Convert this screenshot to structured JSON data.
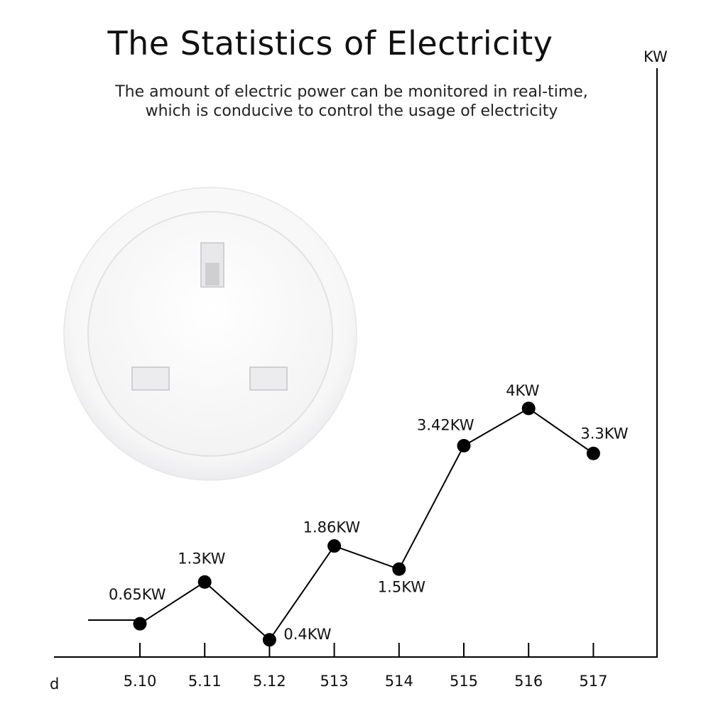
{
  "header": {
    "title": "The Statistics of Electricity",
    "subtitle_line1": "The amount of electric power can be monitored in real-time,",
    "subtitle_line2": "which is conducive to control the usage of electricity"
  },
  "product": {
    "icon": "uk-socket-icon"
  },
  "chart_data": {
    "type": "line",
    "title": "The Statistics of Electricity",
    "xlabel": "d",
    "ylabel": "KW",
    "categories": [
      "5.10",
      "5.11",
      "5.12",
      "513",
      "514",
      "515",
      "516",
      "517"
    ],
    "values": [
      0.65,
      1.3,
      0.4,
      1.86,
      1.5,
      3.42,
      4,
      3.3
    ],
    "point_labels": [
      "0.65KW",
      "1.3KW",
      "0.4KW",
      "1.86KW",
      "1.5KW",
      "3.42KW",
      "4KW",
      "3.3KW"
    ],
    "ylim": [
      0,
      6.5
    ],
    "grid": false,
    "colors": {
      "line": "#000000",
      "axis": "#000000",
      "point": "#000000"
    }
  }
}
